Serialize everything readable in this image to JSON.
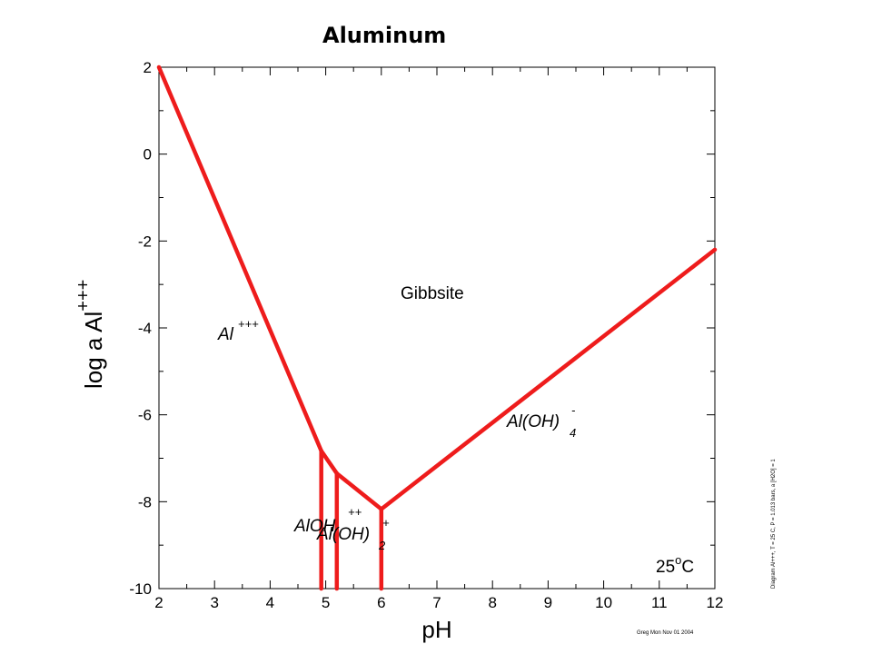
{
  "title": "Aluminum",
  "chart_data": {
    "type": "line",
    "xlabel": "pH",
    "ylabel": "log a Al",
    "ylabel_sup": "+++",
    "xlim": [
      2,
      12
    ],
    "ylim": [
      -10,
      2
    ],
    "x_ticks": [
      "2",
      "3",
      "4",
      "5",
      "6",
      "7",
      "8",
      "9",
      "10",
      "11",
      "12"
    ],
    "y_ticks": [
      "2",
      "0",
      "-2",
      "-4",
      "-6",
      "-8",
      "-10"
    ],
    "boundary_color": "#ee1c1c",
    "series": [
      {
        "x": [
          2,
          4.92
        ],
        "y": [
          2,
          -6.83
        ]
      },
      {
        "x": [
          4.92,
          5.2
        ],
        "y": [
          -6.83,
          -7.35
        ]
      },
      {
        "x": [
          5.2,
          6.0
        ],
        "y": [
          -7.35,
          -8.17
        ]
      },
      {
        "x": [
          6.0,
          12
        ],
        "y": [
          -8.17,
          -2.2
        ]
      },
      {
        "x": [
          4.92,
          4.92
        ],
        "y": [
          -6.83,
          -10
        ]
      },
      {
        "x": [
          5.2,
          5.2
        ],
        "y": [
          -7.35,
          -10
        ]
      },
      {
        "x": [
          6.0,
          6.0
        ],
        "y": [
          -8.17,
          -10
        ]
      }
    ],
    "region_labels": {
      "gibbsite": "Gibbsite",
      "al3_base": "Al",
      "al3_sup": "+++",
      "aloh4_base": "Al(OH)",
      "aloh4_sub": "4",
      "aloh4_sup": "-",
      "aloh_base": "AlOH",
      "aloh_sup": "++",
      "aloh2_base": "Al(OH)",
      "aloh2_sub": "2",
      "aloh2_sup": "+"
    },
    "temperature_base": "25",
    "temperature_sup": "o",
    "temperature_unit": "C",
    "side_note": "Diagram Al+++, T = 25 C, P = 1.013 bars, a [H2O] = 1",
    "footer": "Greg Mon Nov 01 2004"
  }
}
